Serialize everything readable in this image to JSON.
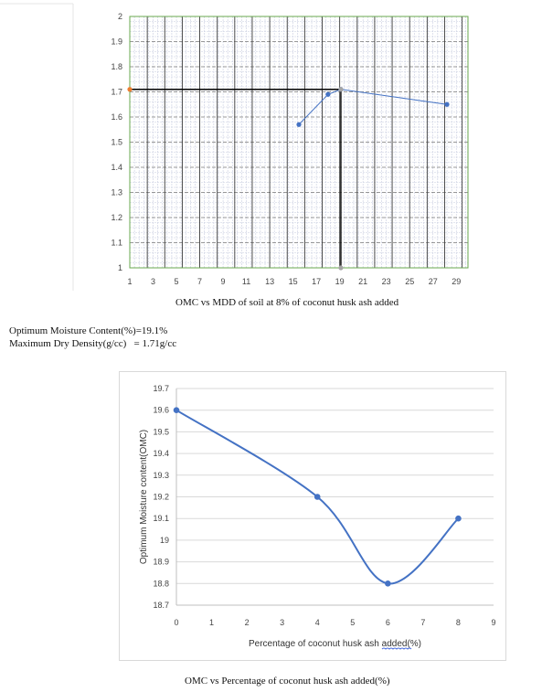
{
  "document": {
    "caption1": "OMC vs MDD of soil at 8% of coconut husk ash added",
    "result_line1": "Optimum Moisture Content(%)=19.1%",
    "result_line2": "Maximum Dry Density(g/cc)   = 1.71g/cc",
    "caption2": "OMC vs Percentage of coconut husk ash added(%)"
  },
  "chart_data": [
    {
      "type": "scatter",
      "title": "",
      "xlabel": "",
      "ylabel": "",
      "xlim": [
        1,
        30
      ],
      "ylim": [
        1,
        2
      ],
      "x_ticks": [
        "1",
        "3",
        "5",
        "7",
        "9",
        "11",
        "13",
        "15",
        "17",
        "19",
        "21",
        "23",
        "25",
        "27",
        "29"
      ],
      "y_ticks": [
        "1",
        "1.1",
        "1.2",
        "1.3",
        "1.4",
        "1.5",
        "1.6",
        "1.7",
        "1.8",
        "1.9",
        "2"
      ],
      "grid": true,
      "series": [
        {
          "x": [
            15.5,
            18.0,
            19.1,
            28.2
          ],
          "y": [
            1.57,
            1.69,
            1.71,
            1.65
          ],
          "color": "#4472c4"
        }
      ],
      "markers": [
        {
          "x": 1,
          "y": 1.71,
          "color": "#ed7d31"
        },
        {
          "x": 19.1,
          "y": 1,
          "color": "#a5a5a5"
        },
        {
          "x": 19.1,
          "y": 1.71,
          "color": "#a5a5a5"
        }
      ],
      "reference_lines": [
        {
          "x": [
            1,
            19.1
          ],
          "y": [
            1.71,
            1.71
          ]
        },
        {
          "x": [
            19.1,
            19.1
          ],
          "y": [
            1.71,
            1.0
          ]
        }
      ],
      "colors": {
        "grid_major": "#3a3a3a",
        "grid_minor": "#c8cde0",
        "frame": "#6aa84f"
      }
    },
    {
      "type": "line",
      "title": "",
      "xlabel": "Percentage of coconut husk ash added(%)",
      "ylabel": "Optimum Moisture content(OMC)",
      "xlim": [
        0,
        9
      ],
      "ylim": [
        18.7,
        19.7
      ],
      "x_ticks": [
        "0",
        "1",
        "2",
        "3",
        "4",
        "5",
        "6",
        "7",
        "8",
        "9"
      ],
      "y_ticks": [
        "18.7",
        "18.8",
        "18.9",
        "19",
        "19.1",
        "19.2",
        "19.3",
        "19.4",
        "19.5",
        "19.6",
        "19.7"
      ],
      "grid": true,
      "series": [
        {
          "x": [
            0,
            4,
            6,
            8
          ],
          "y": [
            19.6,
            19.2,
            18.8,
            19.1
          ],
          "color": "#4472c4"
        }
      ]
    }
  ]
}
